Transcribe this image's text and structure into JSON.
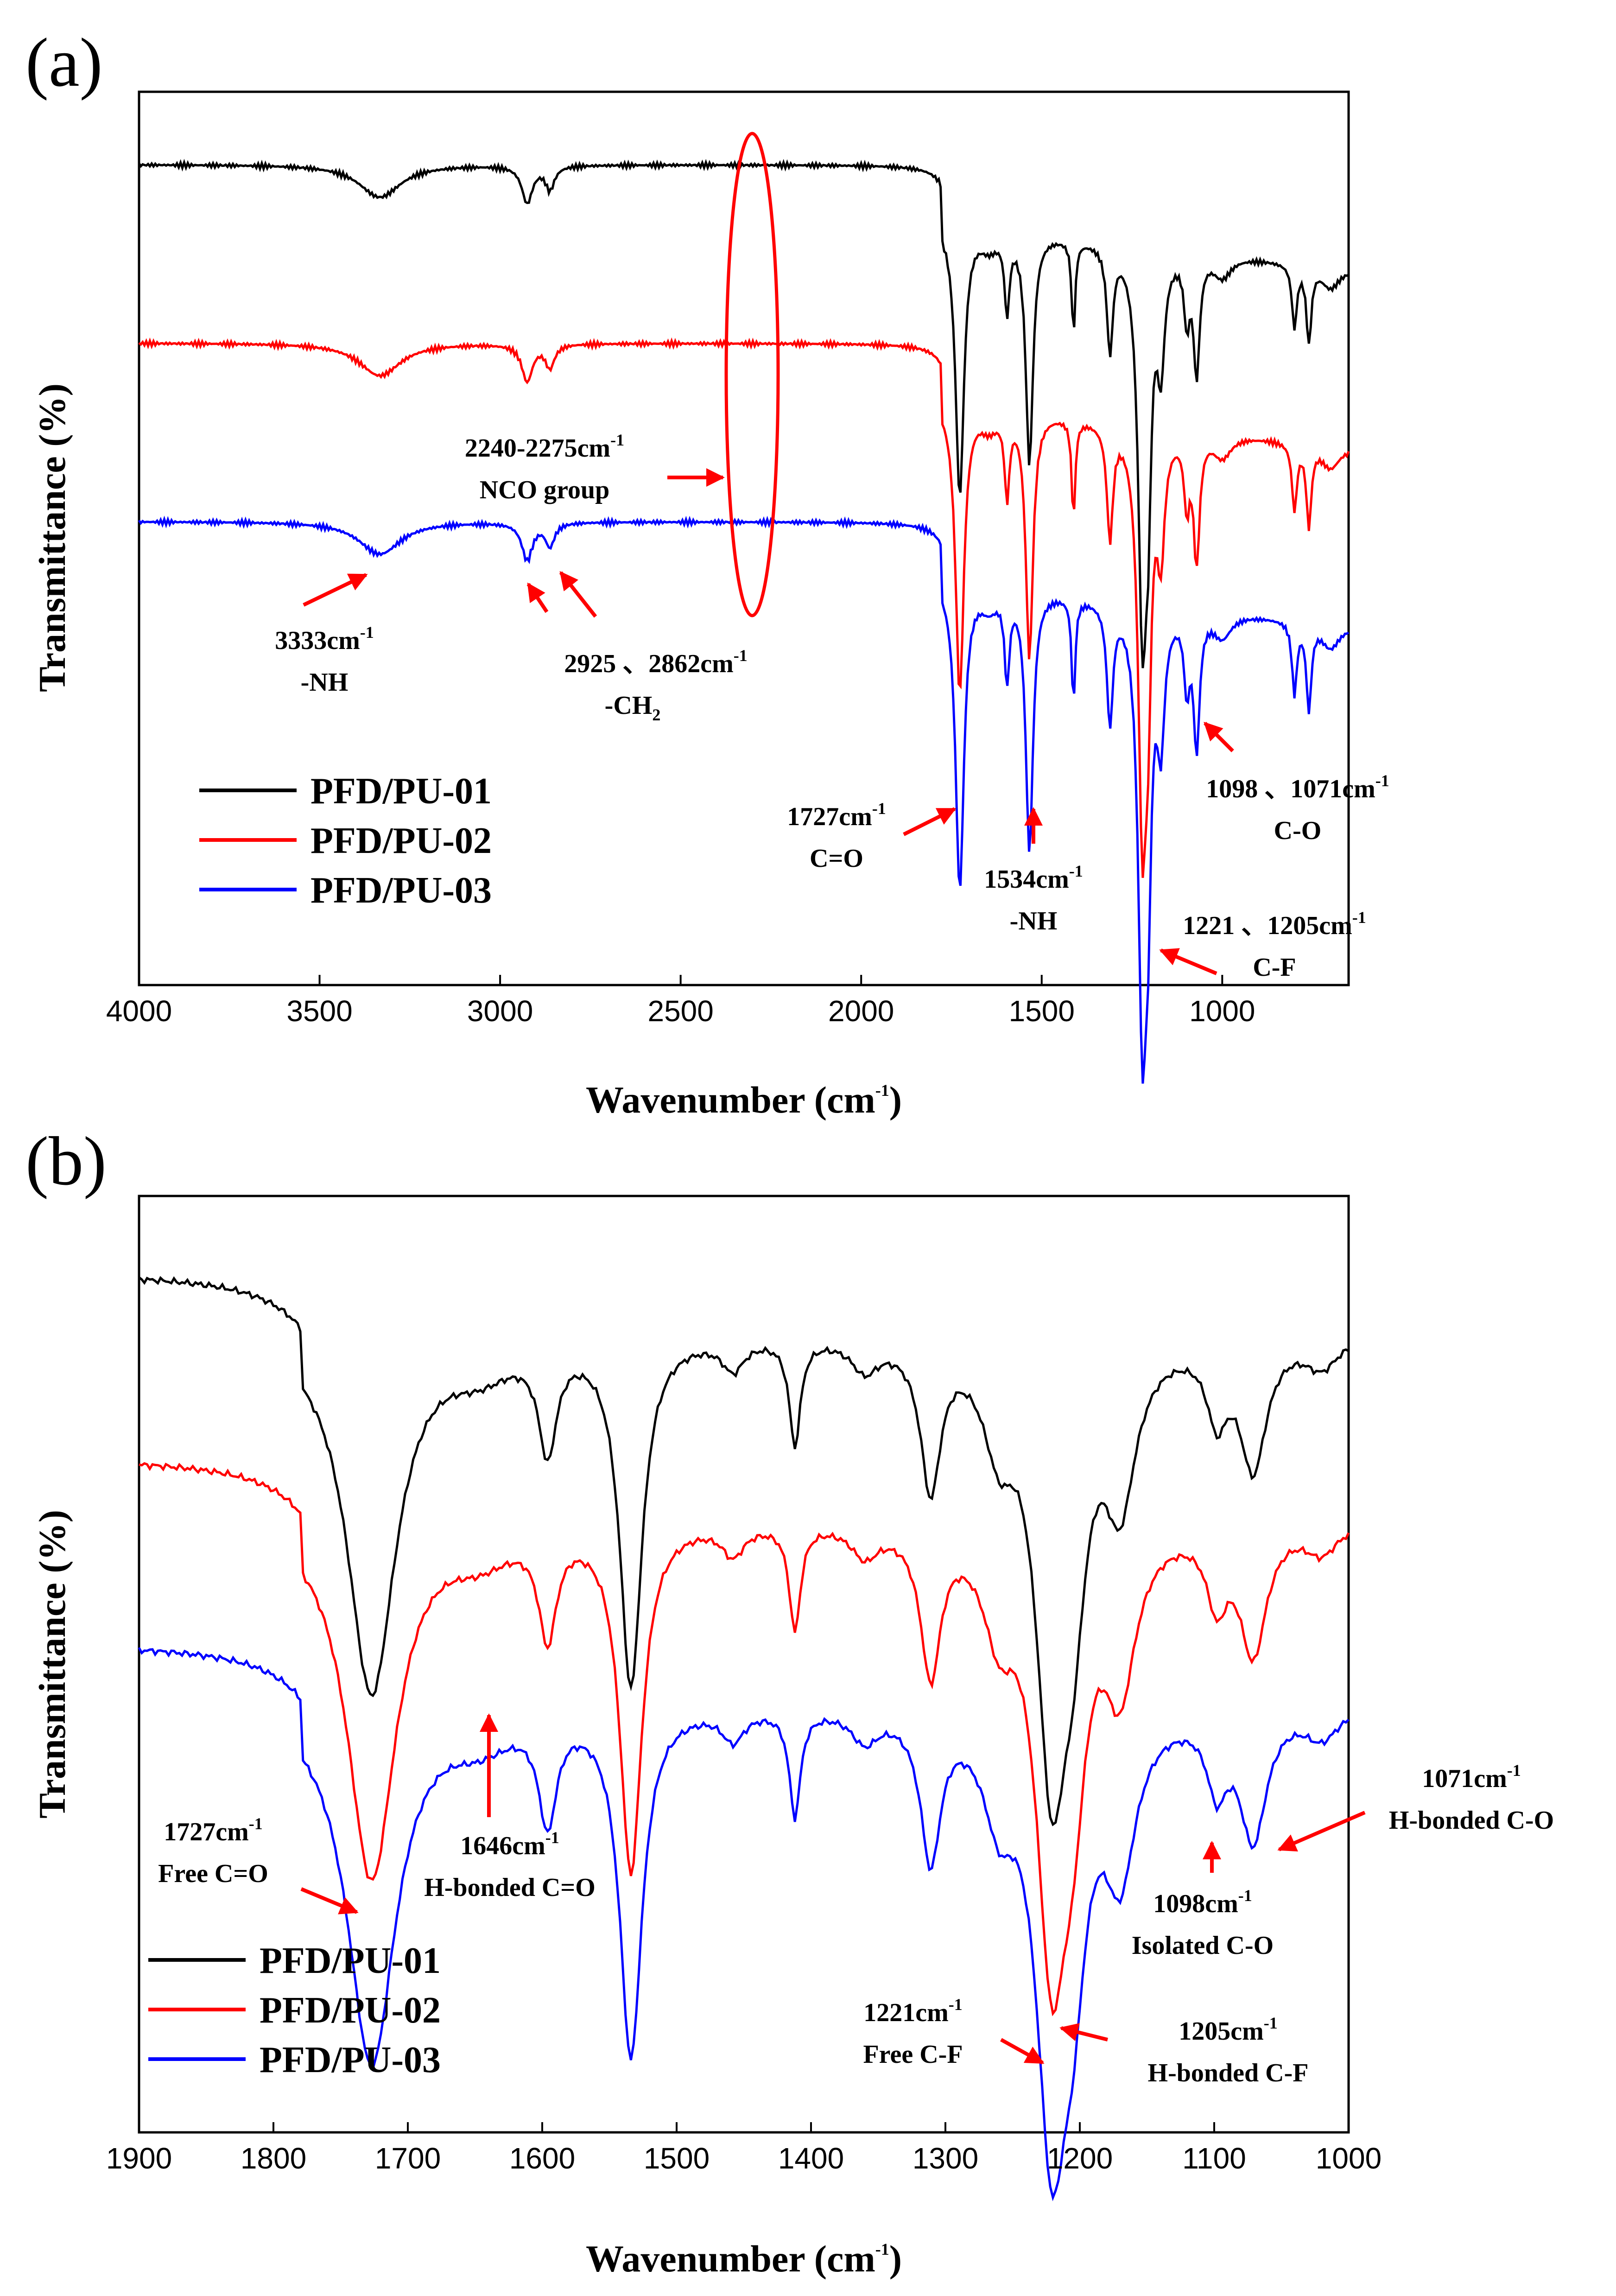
{
  "chart_data": [
    {
      "panel": "(a)",
      "type": "line",
      "xlabel": "Wavenumber (cm",
      "xlabel_sup": "-1",
      "xlabel_end": ")",
      "ylabel": "Transmittance (%)",
      "xlim": [
        4000,
        650
      ],
      "xticks": [
        4000,
        3500,
        3000,
        2500,
        2000,
        1500,
        1000
      ],
      "series": [
        {
          "name": "PFD/PU-01",
          "color": "#000000",
          "offset": 0.0
        },
        {
          "name": "PFD/PU-02",
          "color": "#ff0000",
          "offset": 0.23
        },
        {
          "name": "PFD/PU-03",
          "color": "#0000ff",
          "offset": 0.46
        }
      ],
      "annotations": [
        {
          "id": "nco",
          "line1": "2240-2275cm",
          "sup1": "-1",
          "line2": "NCO group"
        },
        {
          "id": "nh3333",
          "line1": "3333cm",
          "sup1": "-1",
          "line2": "-NH"
        },
        {
          "id": "ch2",
          "line1": "2925 、2862cm",
          "sup1": "-1",
          "line2": "-CH",
          "sub2": "2"
        },
        {
          "id": "co1727",
          "line1": "1727cm",
          "sup1": "-1",
          "line2": "C=O"
        },
        {
          "id": "nh1534",
          "line1": "1534cm",
          "sup1": "-1",
          "line2": "-NH"
        },
        {
          "id": "cf",
          "line1": "1221 、1205cm",
          "sup1": "-1",
          "line2": "C-F"
        },
        {
          "id": "co1098",
          "line1": "1098 、1071cm",
          "sup1": "-1",
          "line2": "C-O"
        }
      ]
    },
    {
      "panel": "(b)",
      "type": "line",
      "xlabel": "Wavenumber (cm",
      "xlabel_sup": "-1",
      "xlabel_end": ")",
      "ylabel": "Transmittance (%)",
      "xlim": [
        1900,
        1000
      ],
      "xticks": [
        1900,
        1800,
        1700,
        1600,
        1500,
        1400,
        1300,
        1200,
        1100,
        1000
      ],
      "series": [
        {
          "name": "PFD/PU-01",
          "color": "#000000",
          "offset": 0.0
        },
        {
          "name": "PFD/PU-02",
          "color": "#ff0000",
          "offset": 0.14
        },
        {
          "name": "PFD/PU-03",
          "color": "#0000ff",
          "offset": 0.28
        }
      ],
      "annotations": [
        {
          "id": "co1727",
          "line1": "1727cm",
          "sup1": "-1",
          "line2": "Free C=O"
        },
        {
          "id": "co1646",
          "line1": "1646cm",
          "sup1": "-1",
          "line2": "H-bonded C=O"
        },
        {
          "id": "co1071",
          "line1": "1071cm",
          "sup1": "-1",
          "line2": "H-bonded C-O"
        },
        {
          "id": "co1098",
          "line1": "1098cm",
          "sup1": "-1",
          "line2": "Isolated C-O"
        },
        {
          "id": "cf1221",
          "line1": "1221cm",
          "sup1": "-1",
          "line2": "Free C-F"
        },
        {
          "id": "cf1205",
          "line1": "1205cm",
          "sup1": "-1",
          "line2": "H-bonded C-F"
        }
      ]
    }
  ],
  "colors": {
    "arrow": "#ff0000",
    "ellipse": "#ff0000"
  }
}
